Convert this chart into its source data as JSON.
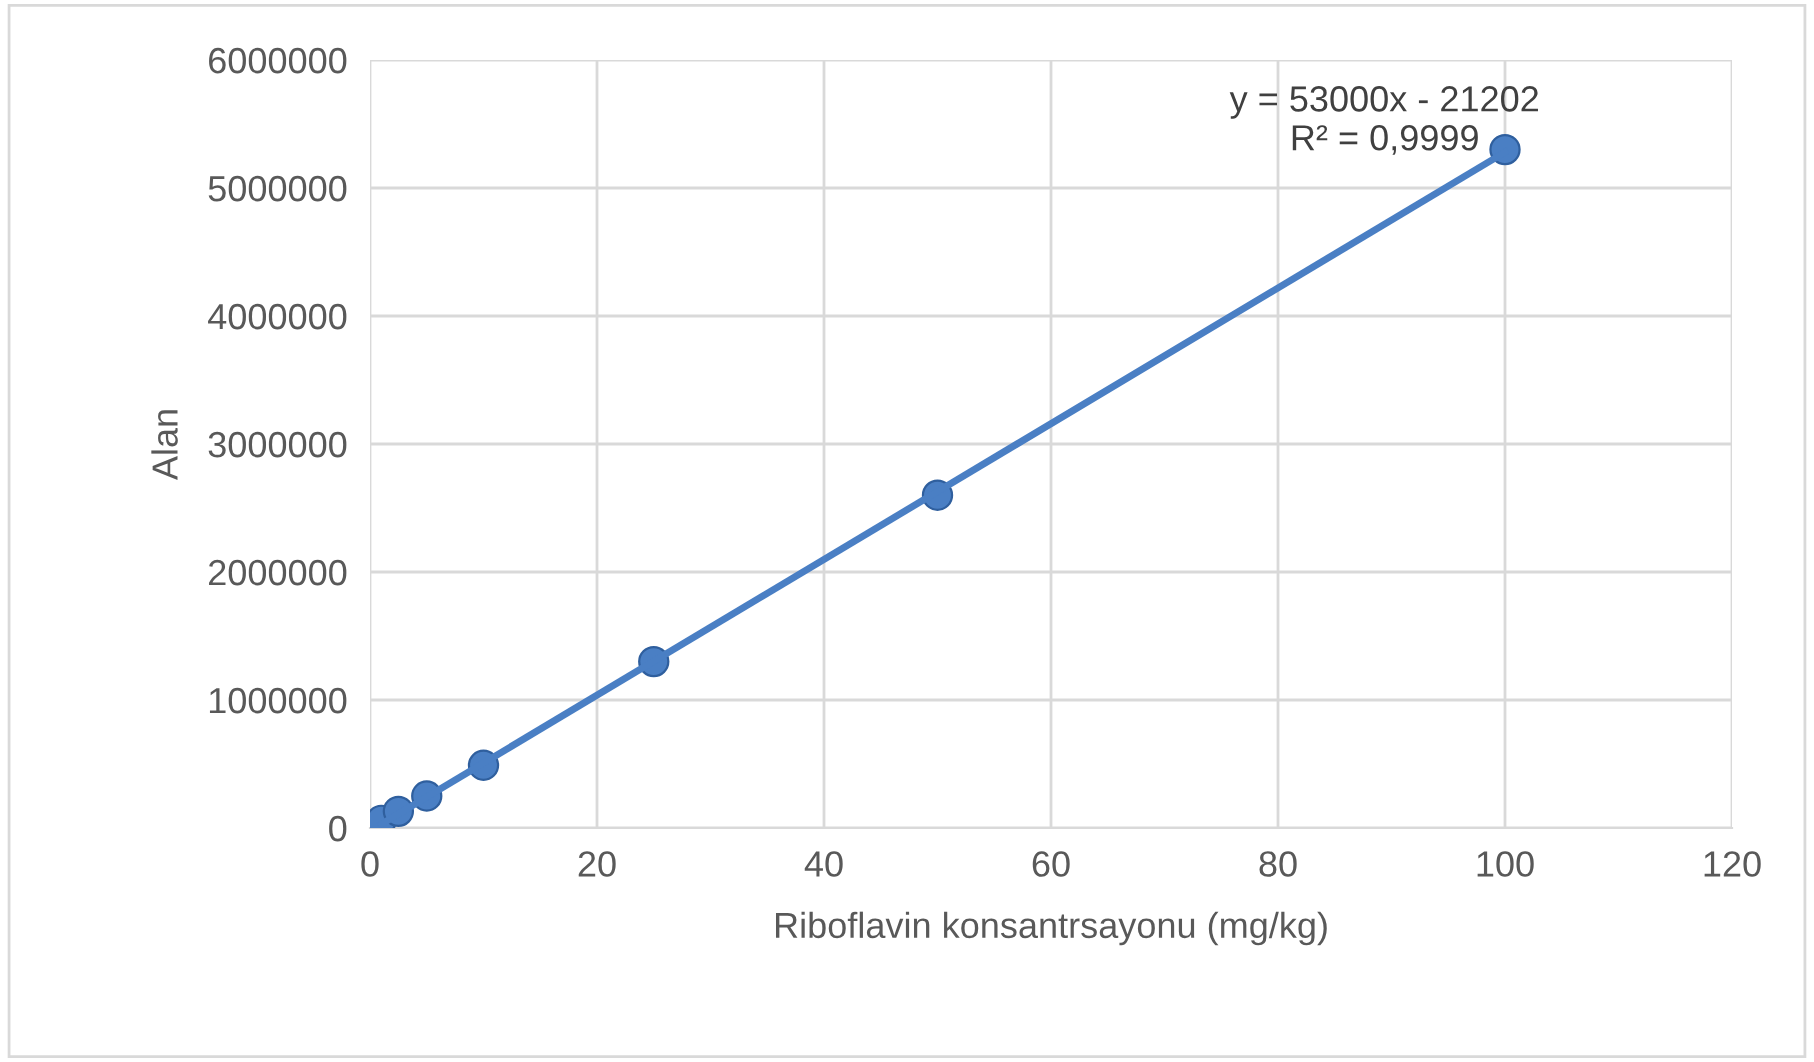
{
  "chart_data": {
    "type": "scatter",
    "xlabel": "Riboflavin konsantrsayonu (mg/kg)",
    "ylabel": "Alan",
    "x": [
      1,
      2.5,
      5,
      10,
      25,
      50,
      100
    ],
    "series": [
      {
        "color": "#4a7fc4",
        "values": [
          60000,
          130000,
          250000,
          490000,
          1300000,
          2600000,
          5300000
        ]
      },
      {
        "type": "line",
        "color": "#4a7fc4",
        "x": [
          1,
          100
        ],
        "values": [
          30000,
          5280000
        ]
      }
    ],
    "xlim": [
      0,
      120
    ],
    "xticks": [
      0,
      20,
      40,
      60,
      80,
      100,
      120
    ],
    "ylim": [
      0,
      6000000
    ],
    "yticks": [
      0,
      1000000,
      2000000,
      3000000,
      4000000,
      5000000,
      6000000
    ],
    "grid": true,
    "annotations": [
      "y = 53000x - 21202\nR² = 0,9999"
    ]
  }
}
